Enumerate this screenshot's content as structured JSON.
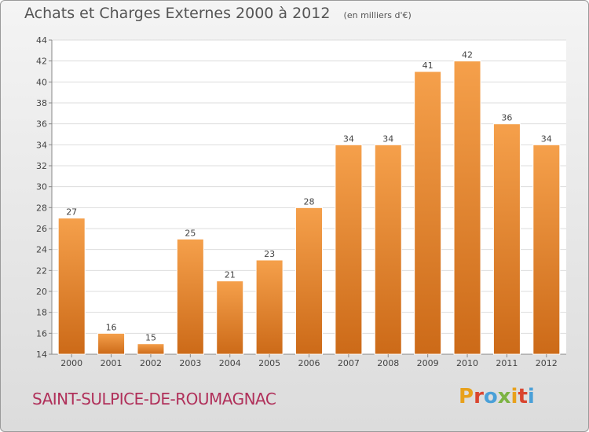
{
  "chart_data": {
    "type": "bar",
    "title": "Achats et Charges Externes 2000 à 2012",
    "subtitle": "(en milliers d'€)",
    "categories": [
      "2000",
      "2001",
      "2002",
      "2003",
      "2004",
      "2005",
      "2006",
      "2007",
      "2008",
      "2009",
      "2010",
      "2011",
      "2012"
    ],
    "values": [
      27,
      16,
      15,
      25,
      21,
      23,
      28,
      34,
      34,
      41,
      42,
      36,
      34
    ],
    "ylim": [
      14,
      44
    ],
    "yticks": [
      14,
      16,
      18,
      20,
      22,
      24,
      26,
      28,
      30,
      32,
      34,
      36,
      38,
      40,
      42,
      44
    ],
    "grid": true,
    "bar_color": "#f5a04b",
    "bar_color_dark": "#cc6a18"
  },
  "footer": {
    "commune": "SAINT-SULPICE-DE-ROUMAGNAC",
    "brand": "Proxiti",
    "brand_colors": [
      "#e8a11c",
      "#d9452f",
      "#4aa0d8",
      "#7cb342",
      "#e8a11c",
      "#d9452f",
      "#4aa0d8"
    ]
  }
}
